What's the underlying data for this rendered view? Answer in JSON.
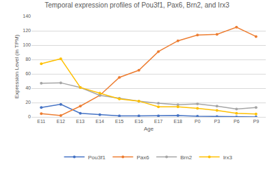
{
  "chart_data": {
    "type": "line",
    "title": "Temporal expression profiles of Pou3f1, Pax6, Brn2, and Irx3",
    "x_label": "Age",
    "y_label": "Expression Level (in TPM)",
    "categories": [
      "E11",
      "E12",
      "E13",
      "E14",
      "E15",
      "E16",
      "E17",
      "E18",
      "P0",
      "P3",
      "P6",
      "P9"
    ],
    "series": [
      {
        "name": "Pou3f1",
        "color": "#4472c4",
        "values": [
          13,
          17.5,
          5,
          3,
          1.5,
          1.5,
          1.5,
          2,
          1,
          0.5,
          0,
          0
        ]
      },
      {
        "name": "Pax6",
        "color": "#ed7d31",
        "values": [
          4.5,
          2,
          15,
          30,
          55,
          65,
          91,
          106,
          114,
          115,
          125,
          112
        ]
      },
      {
        "name": "Brn2",
        "color": "#a5a5a5",
        "values": [
          47,
          47.5,
          41,
          30,
          26,
          22,
          19,
          17,
          18,
          15,
          11,
          13
        ]
      },
      {
        "name": "Irx3",
        "color": "#ffc000",
        "values": [
          74,
          81,
          41,
          33,
          25,
          22,
          14,
          14,
          12,
          9,
          5,
          4
        ]
      }
    ],
    "ylim": [
      0,
      140
    ],
    "yticks": [
      0,
      20,
      40,
      60,
      80,
      100,
      120,
      140
    ],
    "grid": true,
    "legend": "bottom",
    "marker": "circle"
  }
}
